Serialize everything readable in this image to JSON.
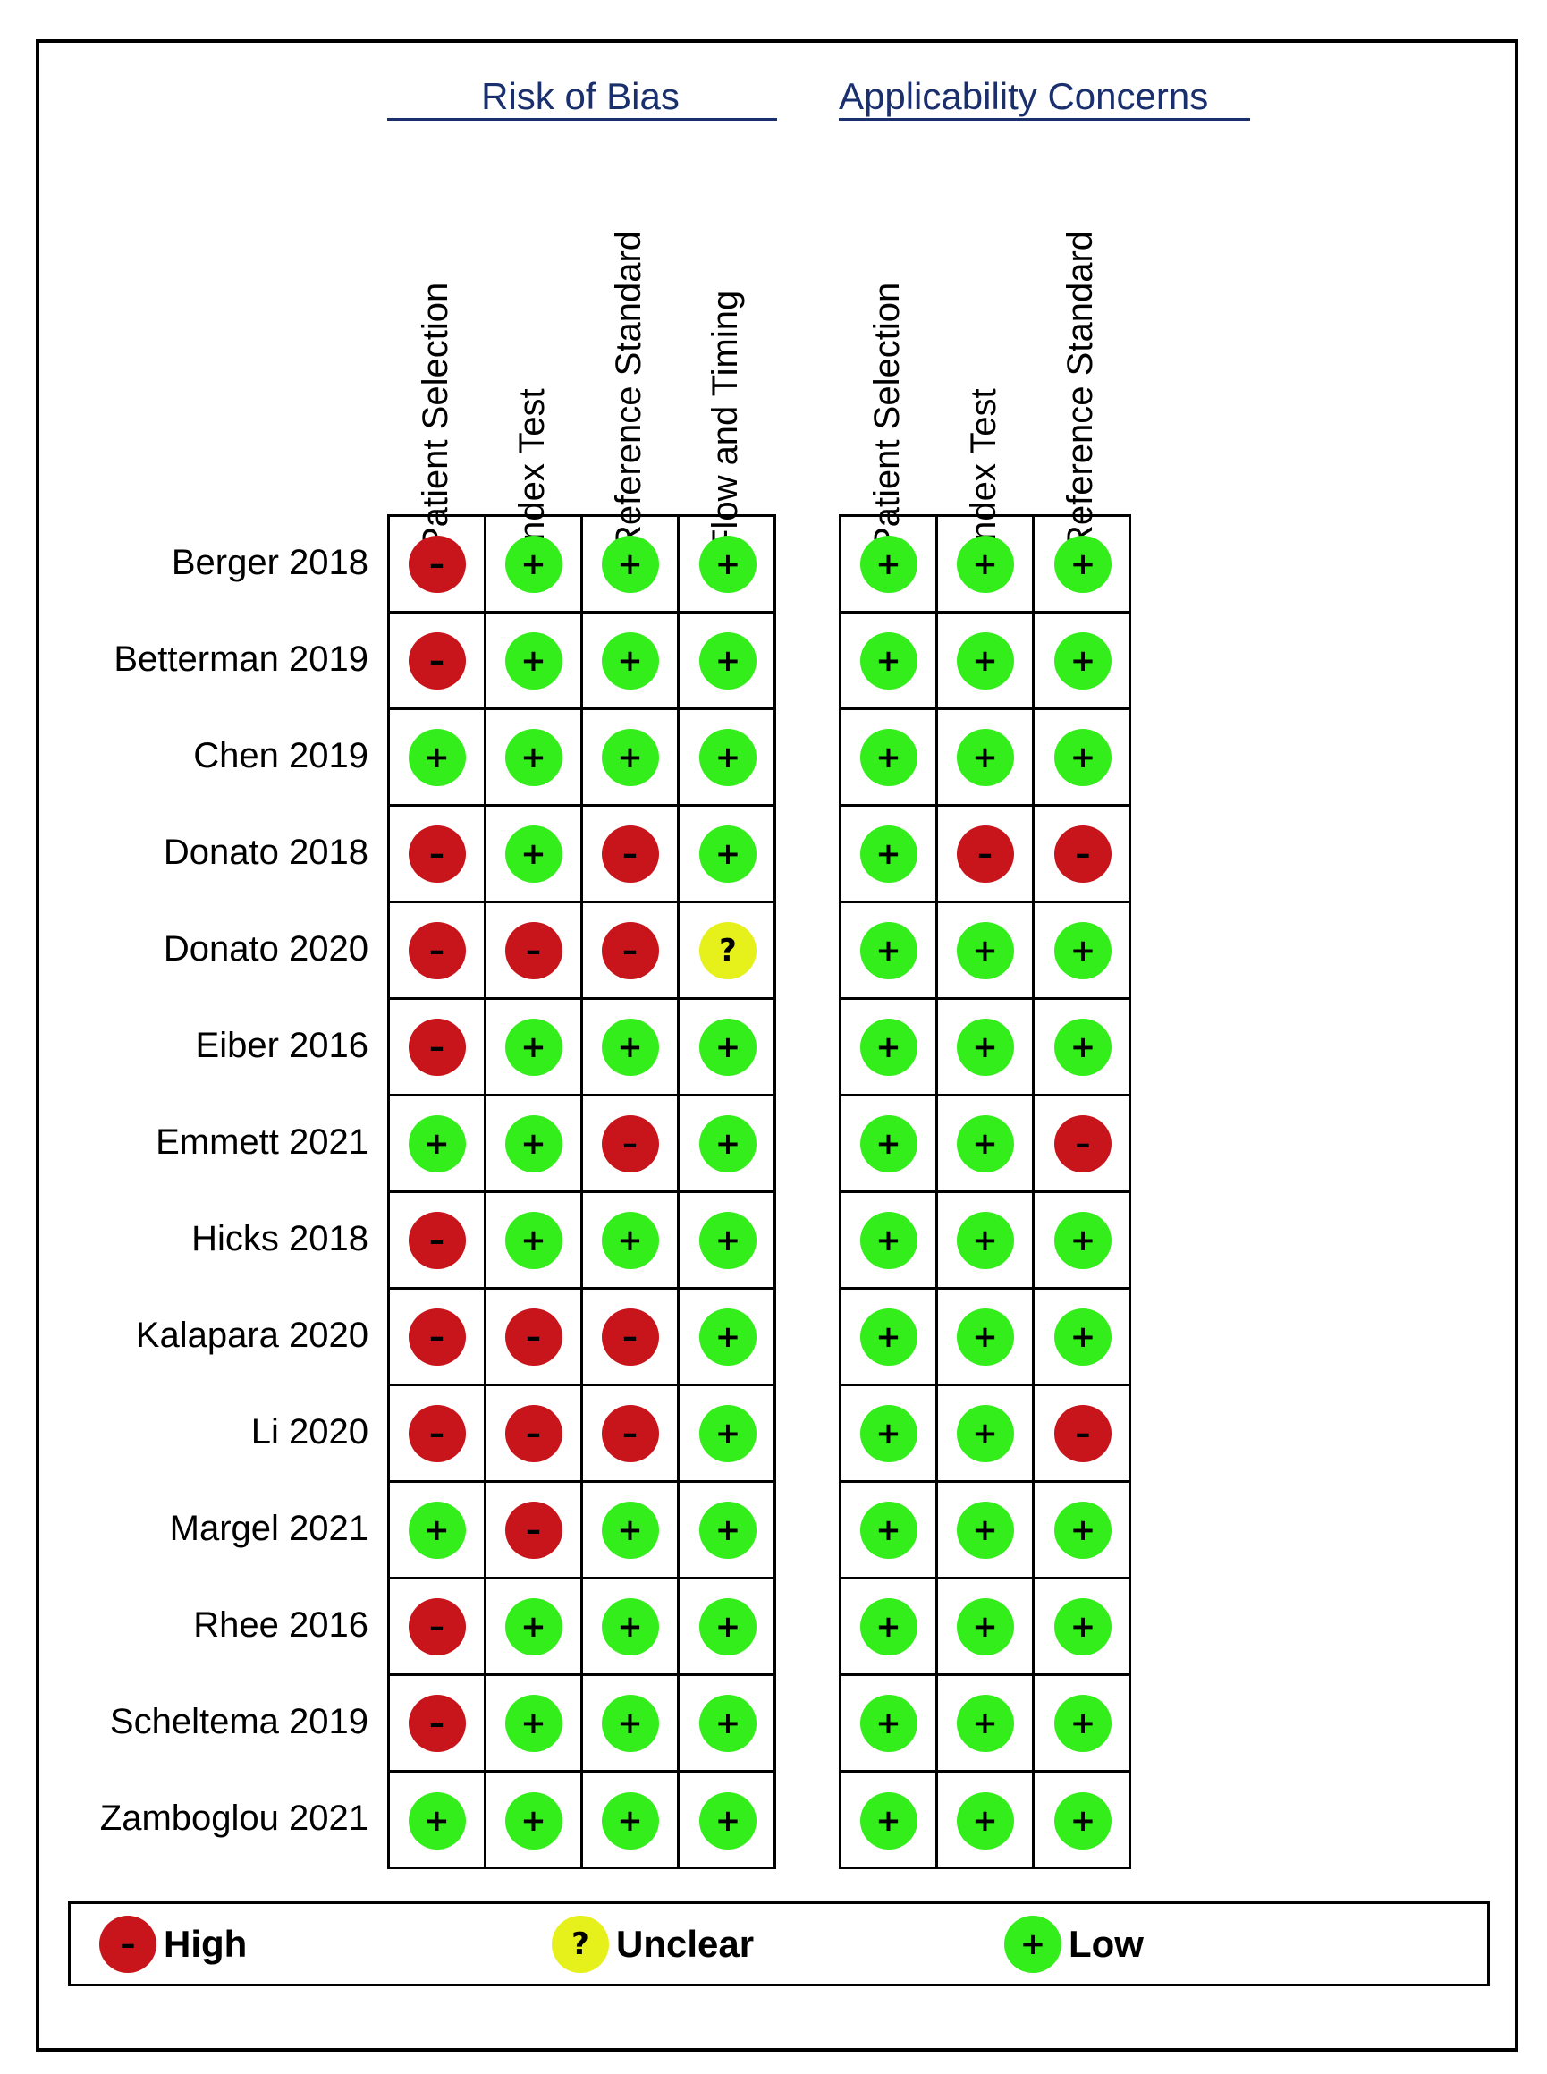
{
  "chart_data": {
    "type": "table",
    "groups": [
      {
        "title": "Risk of Bias",
        "columns": [
          "Patient Selection",
          "Index Test",
          "Reference Standard",
          "Flow and Timing"
        ]
      },
      {
        "title": "Applicability Concerns",
        "columns": [
          "Patient Selection",
          "Index Test",
          "Reference Standard"
        ]
      }
    ],
    "studies": [
      {
        "name": "Berger 2018",
        "risk": [
          "high",
          "low",
          "low",
          "low"
        ],
        "applicability": [
          "low",
          "low",
          "low"
        ]
      },
      {
        "name": "Betterman 2019",
        "risk": [
          "high",
          "low",
          "low",
          "low"
        ],
        "applicability": [
          "low",
          "low",
          "low"
        ]
      },
      {
        "name": "Chen 2019",
        "risk": [
          "low",
          "low",
          "low",
          "low"
        ],
        "applicability": [
          "low",
          "low",
          "low"
        ]
      },
      {
        "name": "Donato 2018",
        "risk": [
          "high",
          "low",
          "high",
          "low"
        ],
        "applicability": [
          "low",
          "high",
          "high"
        ]
      },
      {
        "name": "Donato 2020",
        "risk": [
          "high",
          "high",
          "high",
          "unclear"
        ],
        "applicability": [
          "low",
          "low",
          "low"
        ]
      },
      {
        "name": "Eiber 2016",
        "risk": [
          "high",
          "low",
          "low",
          "low"
        ],
        "applicability": [
          "low",
          "low",
          "low"
        ]
      },
      {
        "name": "Emmett 2021",
        "risk": [
          "low",
          "low",
          "high",
          "low"
        ],
        "applicability": [
          "low",
          "low",
          "high"
        ]
      },
      {
        "name": "Hicks 2018",
        "risk": [
          "high",
          "low",
          "low",
          "low"
        ],
        "applicability": [
          "low",
          "low",
          "low"
        ]
      },
      {
        "name": "Kalapara 2020",
        "risk": [
          "high",
          "high",
          "high",
          "low"
        ],
        "applicability": [
          "low",
          "low",
          "low"
        ]
      },
      {
        "name": "Li 2020",
        "risk": [
          "high",
          "high",
          "high",
          "low"
        ],
        "applicability": [
          "low",
          "low",
          "high"
        ]
      },
      {
        "name": "Margel 2021",
        "risk": [
          "low",
          "high",
          "low",
          "low"
        ],
        "applicability": [
          "low",
          "low",
          "low"
        ]
      },
      {
        "name": "Rhee 2016",
        "risk": [
          "high",
          "low",
          "low",
          "low"
        ],
        "applicability": [
          "low",
          "low",
          "low"
        ]
      },
      {
        "name": "Scheltema 2019",
        "risk": [
          "high",
          "low",
          "low",
          "low"
        ],
        "applicability": [
          "low",
          "low",
          "low"
        ]
      },
      {
        "name": "Zamboglou 2021",
        "risk": [
          "low",
          "low",
          "low",
          "low"
        ],
        "applicability": [
          "low",
          "low",
          "low"
        ]
      }
    ],
    "judgements": {
      "high": {
        "label": "High",
        "symbol": "–",
        "color": "#c8141b"
      },
      "unclear": {
        "label": "Unclear",
        "symbol": "?",
        "color": "#e6f01a"
      },
      "low": {
        "label": "Low",
        "symbol": "+",
        "color": "#33ee1a"
      }
    },
    "legend_order": [
      "high",
      "unclear",
      "low"
    ]
  }
}
